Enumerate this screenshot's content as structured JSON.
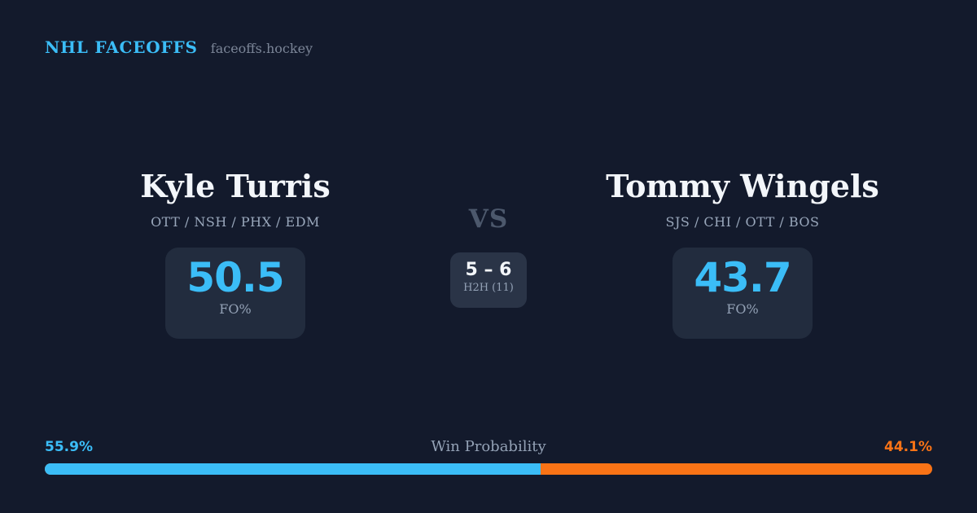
{
  "header": {
    "brand": "NHL FACEOFFS",
    "site": "faceoffs.hockey"
  },
  "player_left": {
    "name": "Kyle Turris",
    "teams": "OTT / NSH / PHX / EDM",
    "fo_value": "50.5",
    "fo_label": "FO%"
  },
  "versus": {
    "label": "VS",
    "h2h_score": "5 – 6",
    "h2h_label": "H2H (11)"
  },
  "player_right": {
    "name": "Tommy Wingels",
    "teams": "SJS / CHI / OTT / BOS",
    "fo_value": "43.7",
    "fo_label": "FO%"
  },
  "win_probability": {
    "title": "Win Probability",
    "left_label": "55.9%",
    "right_label": "44.1%",
    "left_value": 55.9,
    "right_value": 44.1
  },
  "chart_data": {
    "type": "bar",
    "title": "Win Probability",
    "categories": [
      "Kyle Turris",
      "Tommy Wingels"
    ],
    "values": [
      55.9,
      44.1
    ],
    "legend_position": "none",
    "note": "single stacked horizontal bar, blue vs orange segments"
  },
  "colors": {
    "bg": "#131a2c",
    "panel": "#222c3e",
    "panel_center": "#2a3447",
    "blue": "#3bbdf7",
    "orange": "#f97316",
    "white": "#f3f6fa",
    "muted": "#94a2b6",
    "muted2": "#9aa8bc",
    "faint": "#7b8597",
    "vs": "#4c586c"
  }
}
